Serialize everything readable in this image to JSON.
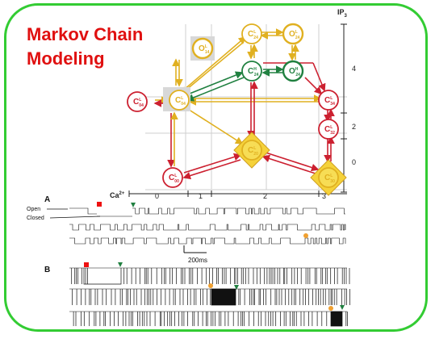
{
  "title": {
    "line1": "Markov Chain",
    "line2": "Modeling"
  },
  "axes": {
    "ip3_label": "IP",
    "ip3_sub": "3",
    "ca_label": "Ca",
    "ca_sup": "2+",
    "ip3_ticks": [
      "4",
      "2",
      "0"
    ],
    "ca_ticks": [
      "0",
      "1",
      "2",
      "3"
    ]
  },
  "states": [
    {
      "id": "O14",
      "main": "O",
      "sup": "L",
      "sub": "14",
      "kind": "open",
      "color": "yellow"
    },
    {
      "id": "C04",
      "main": "C",
      "sup": "L",
      "sub": "04",
      "kind": "closed",
      "color": "red"
    },
    {
      "id": "C24a",
      "main": "C",
      "sup": "L",
      "sub": "24",
      "kind": "closed",
      "color": "yellow"
    },
    {
      "id": "O24a",
      "main": "O",
      "sup": "L",
      "sub": "24",
      "kind": "open",
      "color": "yellow"
    },
    {
      "id": "C24h",
      "main": "C",
      "sup": "H",
      "sub": "24",
      "kind": "closed",
      "color": "green"
    },
    {
      "id": "O24h",
      "main": "O",
      "sup": "H",
      "sub": "24",
      "kind": "open",
      "color": "green"
    },
    {
      "id": "C34",
      "main": "C",
      "sup": "L",
      "sub": "34",
      "kind": "closed",
      "color": "red"
    },
    {
      "id": "C32",
      "main": "C",
      "sup": "L",
      "sub": "32",
      "kind": "closed",
      "color": "red"
    },
    {
      "id": "C00",
      "main": "C",
      "sup": "L",
      "sub": "00",
      "kind": "closed",
      "color": "red"
    },
    {
      "id": "C20",
      "main": "C",
      "sup": "L",
      "sub": "20",
      "kind": "closed",
      "color": "yellow"
    },
    {
      "id": "C30",
      "main": "C",
      "sup": "L",
      "sub": "30",
      "kind": "closed",
      "color": "yellow"
    },
    {
      "id": "C04b",
      "main": "C",
      "sup": "L",
      "sub": "04",
      "kind": "closed",
      "color": "yellow"
    }
  ],
  "panel_a": {
    "label": "A",
    "open_label": "Open",
    "closed_label": "Closed",
    "scalebar": "200ms"
  },
  "panel_b": {
    "label": "B"
  },
  "colors": {
    "frame": "#33cc33",
    "title": "#e01010",
    "red": "#cc2030",
    "yellow": "#e0b020",
    "green": "#208040",
    "marker_red": "#ee1111",
    "marker_green": "#208040",
    "marker_orange": "#f0a030"
  }
}
